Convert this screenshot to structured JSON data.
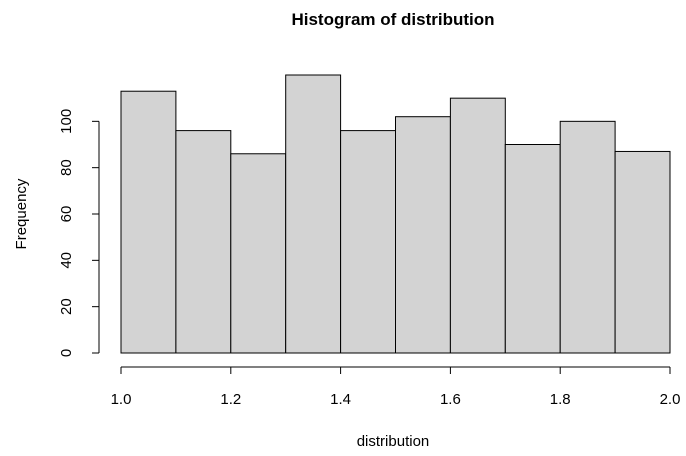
{
  "chart_data": {
    "type": "bar",
    "title": "Histogram of distribution",
    "xlabel": "distribution",
    "ylabel": "Frequency",
    "bins": [
      {
        "start": 1.0,
        "end": 1.1,
        "count": 113
      },
      {
        "start": 1.1,
        "end": 1.2,
        "count": 96
      },
      {
        "start": 1.2,
        "end": 1.3,
        "count": 86
      },
      {
        "start": 1.3,
        "end": 1.4,
        "count": 120
      },
      {
        "start": 1.4,
        "end": 1.5,
        "count": 96
      },
      {
        "start": 1.5,
        "end": 1.6,
        "count": 102
      },
      {
        "start": 1.6,
        "end": 1.7,
        "count": 110
      },
      {
        "start": 1.7,
        "end": 1.8,
        "count": 90
      },
      {
        "start": 1.8,
        "end": 1.9,
        "count": 100
      },
      {
        "start": 1.9,
        "end": 2.0,
        "count": 87
      }
    ],
    "xlim": [
      1.0,
      2.0
    ],
    "ylim": [
      0,
      120
    ],
    "xticks": [
      "1.0",
      "1.2",
      "1.4",
      "1.6",
      "1.8",
      "2.0"
    ],
    "yticks": [
      "0",
      "20",
      "40",
      "60",
      "80",
      "100"
    ],
    "grid": false,
    "colors": {
      "bar_fill": "#d3d3d3",
      "bar_stroke": "#000000"
    }
  }
}
